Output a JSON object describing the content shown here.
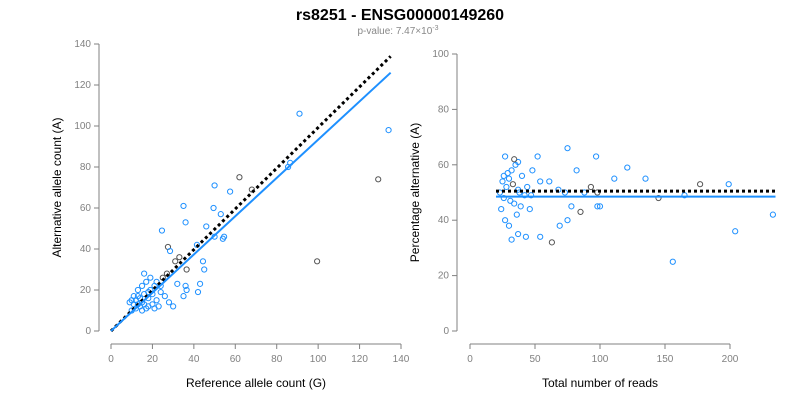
{
  "title": "rs8251 - ENSG00000149260",
  "subtitle_prefix": "p-value: 7.47×10",
  "subtitle_exp": "-3",
  "colors": {
    "point": "#1e90ff",
    "point_alt": "#555555",
    "fit": "#1e90ff",
    "expected": "#000000",
    "axis": "#808080"
  },
  "chart_data": [
    {
      "type": "scatter",
      "xlabel": "Reference allele count (G)",
      "ylabel": "Alternative allele count (A)",
      "xlim": [
        0,
        140
      ],
      "ylim": [
        0,
        140
      ],
      "xticks": [
        "0",
        "20",
        "40",
        "60",
        "80",
        "100",
        "120",
        "140"
      ],
      "yticks": [
        "0",
        "20",
        "40",
        "60",
        "80",
        "100",
        "120",
        "140"
      ],
      "lines": [
        {
          "name": "expected",
          "style": "dotted",
          "color": "#000000",
          "x": [
            0,
            135
          ],
          "y": [
            0,
            134
          ]
        },
        {
          "name": "fit",
          "style": "solid",
          "color": "#1e90ff",
          "x": [
            0,
            135
          ],
          "y": [
            0,
            126
          ]
        }
      ],
      "points": [
        [
          91,
          106,
          0
        ],
        [
          134,
          98,
          0
        ],
        [
          129,
          74,
          1
        ],
        [
          99.5,
          34,
          1
        ],
        [
          86.5,
          82,
          0
        ],
        [
          85.5,
          80,
          0
        ],
        [
          62,
          75,
          1
        ],
        [
          68,
          69,
          1
        ],
        [
          50,
          71,
          0
        ],
        [
          49.5,
          60,
          0
        ],
        [
          35,
          61,
          0
        ],
        [
          36,
          53,
          0
        ],
        [
          24.6,
          49,
          0
        ],
        [
          57.5,
          68,
          0
        ],
        [
          53,
          57,
          0
        ],
        [
          46,
          51,
          0
        ],
        [
          54,
          45,
          0
        ],
        [
          54.6,
          46,
          0
        ],
        [
          50,
          46,
          0
        ],
        [
          41.5,
          42,
          0
        ],
        [
          44.4,
          34,
          0
        ],
        [
          45,
          30,
          0
        ],
        [
          43,
          23,
          0
        ],
        [
          42,
          19,
          0
        ],
        [
          36,
          22,
          0
        ],
        [
          36.5,
          20,
          0
        ],
        [
          35,
          17,
          0
        ],
        [
          36.5,
          30,
          1
        ],
        [
          33,
          36,
          1
        ],
        [
          31,
          34,
          1
        ],
        [
          27.5,
          41,
          1
        ],
        [
          28.5,
          39,
          0
        ],
        [
          32,
          23,
          0
        ],
        [
          10,
          10,
          0
        ],
        [
          11,
          13,
          0
        ],
        [
          12,
          15,
          0
        ],
        [
          13,
          17,
          0
        ],
        [
          14,
          12,
          0
        ],
        [
          15,
          14,
          0
        ],
        [
          16,
          18,
          0
        ],
        [
          17,
          11,
          0
        ],
        [
          18,
          16,
          0
        ],
        [
          19,
          20,
          0
        ],
        [
          20,
          13,
          0
        ],
        [
          21,
          22,
          0
        ],
        [
          22,
          15,
          0
        ],
        [
          23,
          12,
          0
        ],
        [
          24,
          19,
          0
        ],
        [
          12,
          11,
          0
        ],
        [
          14,
          16,
          0
        ],
        [
          16,
          13,
          0
        ],
        [
          18,
          12,
          0
        ],
        [
          20,
          18,
          0
        ],
        [
          9,
          14,
          0
        ],
        [
          11,
          17,
          0
        ],
        [
          13,
          20,
          0
        ],
        [
          15,
          22,
          0
        ],
        [
          17,
          24,
          0
        ],
        [
          19,
          26,
          0
        ],
        [
          16,
          28,
          0
        ],
        [
          25,
          26,
          1
        ],
        [
          27,
          28,
          1
        ],
        [
          22,
          24,
          0
        ],
        [
          24,
          22,
          0
        ],
        [
          26,
          17,
          0
        ],
        [
          28,
          14,
          0
        ],
        [
          21,
          11,
          0
        ],
        [
          30,
          12,
          0
        ],
        [
          15,
          10,
          0
        ],
        [
          13,
          13,
          0
        ],
        [
          10,
          15,
          0
        ],
        [
          18,
          19,
          0
        ]
      ]
    },
    {
      "type": "scatter",
      "xlabel": "Total number of reads",
      "ylabel": "Percentage alternative (A)",
      "xlim": [
        0,
        235
      ],
      "ylim": [
        0,
        100
      ],
      "xticks": [
        "0",
        "50",
        "100",
        "150",
        "200"
      ],
      "yticks": [
        "0",
        "20",
        "40",
        "60",
        "80",
        "100"
      ],
      "lines": [
        {
          "name": "expected",
          "style": "dotted",
          "color": "#000000",
          "x": [
            20,
            235
          ],
          "y": [
            50.5,
            50.5
          ]
        },
        {
          "name": "fit",
          "style": "solid",
          "color": "#1e90ff",
          "x": [
            20,
            235
          ],
          "y": [
            48.5,
            48.5
          ]
        }
      ],
      "points": [
        [
          27,
          63,
          0
        ],
        [
          37,
          61,
          0
        ],
        [
          52,
          63,
          0
        ],
        [
          75,
          66,
          0
        ],
        [
          97,
          63,
          0
        ],
        [
          121,
          59,
          0
        ],
        [
          135,
          55,
          0
        ],
        [
          177,
          53,
          1
        ],
        [
          199,
          53,
          0
        ],
        [
          233,
          42,
          0
        ],
        [
          204,
          36,
          0
        ],
        [
          156,
          25,
          0
        ],
        [
          165,
          49,
          0
        ],
        [
          145,
          48,
          1
        ],
        [
          111,
          55,
          0
        ],
        [
          98,
          45,
          0
        ],
        [
          100,
          45,
          0
        ],
        [
          93,
          52,
          1
        ],
        [
          85,
          43,
          1
        ],
        [
          75,
          40,
          0
        ],
        [
          69,
          38,
          0
        ],
        [
          63,
          32,
          1
        ],
        [
          54,
          34,
          0
        ],
        [
          43,
          34,
          0
        ],
        [
          32,
          33,
          0
        ],
        [
          37,
          35,
          0
        ],
        [
          47,
          49,
          0
        ],
        [
          61,
          54,
          0
        ],
        [
          68,
          51,
          0
        ],
        [
          78,
          45,
          0
        ],
        [
          88,
          50,
          0
        ],
        [
          73,
          50,
          0
        ],
        [
          54,
          54,
          0
        ],
        [
          82,
          58,
          0
        ],
        [
          98,
          50,
          1
        ],
        [
          24,
          44,
          0
        ],
        [
          26,
          48,
          0
        ],
        [
          28,
          52,
          0
        ],
        [
          30,
          55,
          0
        ],
        [
          32,
          58,
          0
        ],
        [
          34,
          46,
          0
        ],
        [
          36,
          42,
          0
        ],
        [
          38,
          50,
          0
        ],
        [
          25,
          54,
          0
        ],
        [
          27,
          40,
          0
        ],
        [
          29,
          57,
          0
        ],
        [
          31,
          47,
          0
        ],
        [
          33,
          53,
          1
        ],
        [
          35,
          60,
          0
        ],
        [
          39,
          45,
          0
        ],
        [
          40,
          56,
          0
        ],
        [
          42,
          49,
          0
        ],
        [
          23,
          50,
          0
        ],
        [
          26,
          56,
          0
        ],
        [
          30,
          38,
          0
        ],
        [
          34,
          62,
          1
        ],
        [
          37,
          51,
          0
        ],
        [
          44,
          52,
          0
        ],
        [
          46,
          44,
          0
        ],
        [
          48,
          58,
          0
        ]
      ]
    }
  ]
}
